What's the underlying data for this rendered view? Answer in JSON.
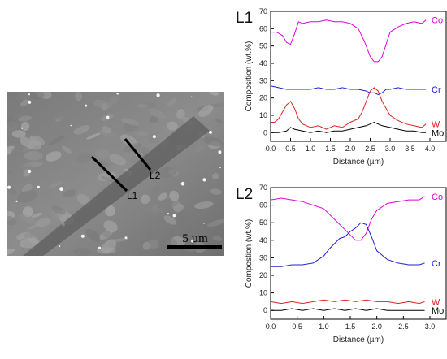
{
  "micrograph": {
    "lines": [
      {
        "label": "L1"
      },
      {
        "label": "L2"
      }
    ],
    "scale_bar": "5 µm"
  },
  "chart_data": [
    {
      "type": "line",
      "panel_label": "L1",
      "xlabel": "Distance (µm)",
      "ylabel": "Composition (wt.%)",
      "xlim": [
        0,
        4.0
      ],
      "ylim": [
        -5,
        70
      ],
      "xticks": [
        "0.0",
        "0.5",
        "1.0",
        "1.5",
        "2.0",
        "2.5",
        "3.0",
        "3.5",
        "4.0"
      ],
      "yticks": [
        "0",
        "10",
        "20",
        "30",
        "40",
        "50",
        "60",
        "70"
      ],
      "series": [
        {
          "name": "Co",
          "color": "#e000e0",
          "x": [
            0,
            0.15,
            0.3,
            0.4,
            0.5,
            0.6,
            0.7,
            0.8,
            1.0,
            1.2,
            1.4,
            1.6,
            1.8,
            2.0,
            2.2,
            2.35,
            2.5,
            2.6,
            2.7,
            2.8,
            2.9,
            3.0,
            3.2,
            3.4,
            3.6,
            3.8,
            3.9
          ],
          "y": [
            58,
            58,
            56,
            52,
            51,
            57,
            64,
            63,
            64,
            64,
            65,
            64,
            64,
            63,
            60,
            53,
            44,
            41,
            41,
            44,
            51,
            58,
            61,
            63,
            64,
            63,
            65
          ]
        },
        {
          "name": "Cr",
          "color": "#2020d0",
          "x": [
            0,
            0.2,
            0.4,
            0.6,
            0.8,
            1.0,
            1.2,
            1.4,
            1.6,
            1.8,
            2.0,
            2.2,
            2.4,
            2.5,
            2.6,
            2.7,
            2.8,
            2.9,
            3.0,
            3.2,
            3.4,
            3.6,
            3.8,
            3.9
          ],
          "y": [
            27,
            26,
            25,
            25,
            25,
            25,
            26,
            25,
            25,
            26,
            25,
            25,
            24,
            23,
            23,
            22,
            23,
            25,
            25,
            26,
            25,
            25,
            25,
            25
          ]
        },
        {
          "name": "W",
          "color": "#e02020",
          "x": [
            0,
            0.1,
            0.2,
            0.3,
            0.4,
            0.5,
            0.6,
            0.7,
            0.8,
            1.0,
            1.2,
            1.4,
            1.6,
            1.8,
            2.0,
            2.2,
            2.3,
            2.4,
            2.5,
            2.6,
            2.7,
            2.8,
            3.0,
            3.2,
            3.4,
            3.6,
            3.8,
            3.9
          ],
          "y": [
            6,
            6,
            8,
            12,
            16,
            18,
            14,
            8,
            5,
            3,
            4,
            2,
            4,
            3,
            6,
            8,
            12,
            18,
            24,
            26,
            24,
            18,
            10,
            7,
            5,
            4,
            3,
            5
          ]
        },
        {
          "name": "Mo",
          "color": "#000000",
          "x": [
            0,
            0.2,
            0.4,
            0.5,
            0.6,
            0.8,
            1.0,
            1.2,
            1.4,
            1.6,
            1.8,
            2.0,
            2.2,
            2.4,
            2.5,
            2.6,
            2.7,
            2.8,
            3.0,
            3.2,
            3.4,
            3.6,
            3.8,
            3.9
          ],
          "y": [
            0,
            0,
            1,
            3,
            2,
            1,
            0,
            1,
            0,
            1,
            1,
            2,
            3,
            4,
            5,
            6,
            5,
            4,
            3,
            2,
            1,
            1,
            0,
            0
          ]
        }
      ]
    },
    {
      "type": "line",
      "panel_label": "L2",
      "xlabel": "Distance (µm)",
      "ylabel": "Compostion (wt.%)",
      "xlim": [
        0,
        3.0
      ],
      "ylim": [
        -5,
        70
      ],
      "xticks": [
        "0.0",
        "0.5",
        "1.0",
        "1.5",
        "2.0",
        "2.5",
        "3.0"
      ],
      "yticks": [
        "0",
        "10",
        "20",
        "30",
        "40",
        "50",
        "60",
        "70"
      ],
      "series": [
        {
          "name": "Co",
          "color": "#e000e0",
          "x": [
            0,
            0.2,
            0.4,
            0.6,
            0.8,
            1.0,
            1.2,
            1.4,
            1.5,
            1.6,
            1.7,
            1.8,
            1.9,
            2.0,
            2.2,
            2.4,
            2.6,
            2.8,
            2.9
          ],
          "y": [
            63,
            64,
            63,
            62,
            60,
            58,
            52,
            46,
            43,
            40,
            40,
            44,
            52,
            57,
            61,
            62,
            63,
            63,
            65
          ]
        },
        {
          "name": "Cr",
          "color": "#2020d0",
          "x": [
            0,
            0.2,
            0.4,
            0.6,
            0.8,
            1.0,
            1.1,
            1.2,
            1.3,
            1.4,
            1.5,
            1.6,
            1.7,
            1.8,
            1.9,
            2.0,
            2.2,
            2.4,
            2.6,
            2.8,
            2.9
          ],
          "y": [
            25,
            25,
            26,
            26,
            27,
            31,
            35,
            38,
            41,
            42,
            45,
            47,
            50,
            49,
            42,
            34,
            29,
            27,
            26,
            26,
            27
          ]
        },
        {
          "name": "W",
          "color": "#e02020",
          "x": [
            0,
            0.2,
            0.4,
            0.6,
            0.8,
            1.0,
            1.2,
            1.4,
            1.6,
            1.8,
            2.0,
            2.2,
            2.4,
            2.6,
            2.8,
            2.9
          ],
          "y": [
            5,
            4,
            5,
            4,
            5,
            6,
            5,
            6,
            5,
            6,
            5,
            5,
            4,
            5,
            4,
            5
          ]
        },
        {
          "name": "Mo",
          "color": "#000000",
          "x": [
            0,
            0.2,
            0.4,
            0.6,
            0.8,
            1.0,
            1.2,
            1.4,
            1.6,
            1.8,
            2.0,
            2.2,
            2.4,
            2.6,
            2.8,
            2.9
          ],
          "y": [
            0,
            0,
            1,
            0,
            1,
            0,
            1,
            0,
            1,
            0,
            1,
            0,
            0,
            0,
            0,
            0
          ]
        }
      ]
    }
  ]
}
